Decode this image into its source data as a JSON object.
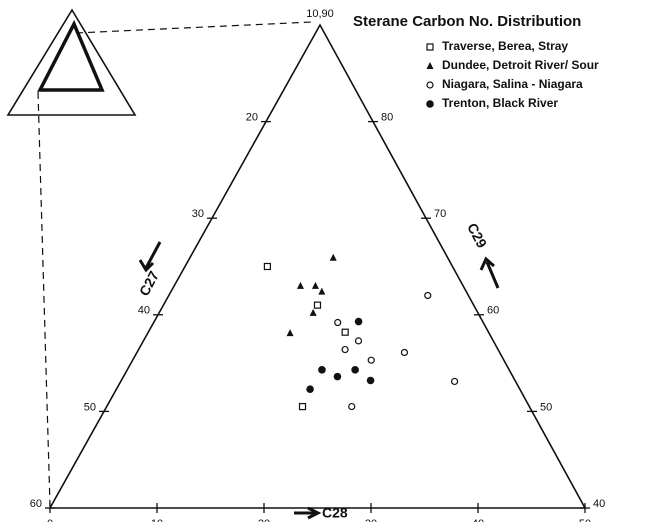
{
  "chart_data": {
    "type": "ternary",
    "title": "Sterane Carbon No. Distribution",
    "axis_labels": {
      "left": "C27",
      "bottom": "C28",
      "right": "C29"
    },
    "c27lim": [
      10,
      60
    ],
    "c28lim": [
      0,
      50
    ],
    "c29lim": [
      40,
      90
    ],
    "left_ticks": [
      20,
      30,
      40,
      50,
      60
    ],
    "bottom_ticks": [
      0,
      10,
      20,
      30,
      40,
      50
    ],
    "right_ticks": [
      40,
      50,
      60,
      70,
      80
    ],
    "top_label": "10,90",
    "series": [
      {
        "name": "Traverse, Berea, Stray",
        "marker": "square",
        "color": "#111",
        "c28": [
          7.7,
          14.4,
          18.4,
          18.3
        ],
        "c29": [
          65.0,
          61.0,
          58.2,
          50.5
        ]
      },
      {
        "name": "Dundee, Detroit River/ Sour",
        "marker": "triangle",
        "color": "#111",
        "c28": [
          13.4,
          11.8,
          13.2,
          14.1,
          14.4,
          13.3
        ],
        "c29": [
          65.9,
          63.0,
          63.0,
          62.4,
          60.2,
          58.1
        ]
      },
      {
        "name": "Niagara, Salina - Niagara",
        "marker": "circle",
        "color": "#111",
        "c28": [
          17.2,
          19.3,
          20.1,
          22.3,
          25.0,
          24.2,
          31.2,
          22.9
        ],
        "c29": [
          59.2,
          56.4,
          57.3,
          55.3,
          56.1,
          62.0,
          53.1,
          50.5
        ]
      },
      {
        "name": "Trenton, Black River",
        "marker": "dot",
        "color": "#111",
        "c28": [
          19.1,
          18.2,
          21.3,
          20.0,
          23.3,
          18.1
        ],
        "c29": [
          59.3,
          54.3,
          54.3,
          53.6,
          53.2,
          52.3
        ]
      }
    ]
  }
}
